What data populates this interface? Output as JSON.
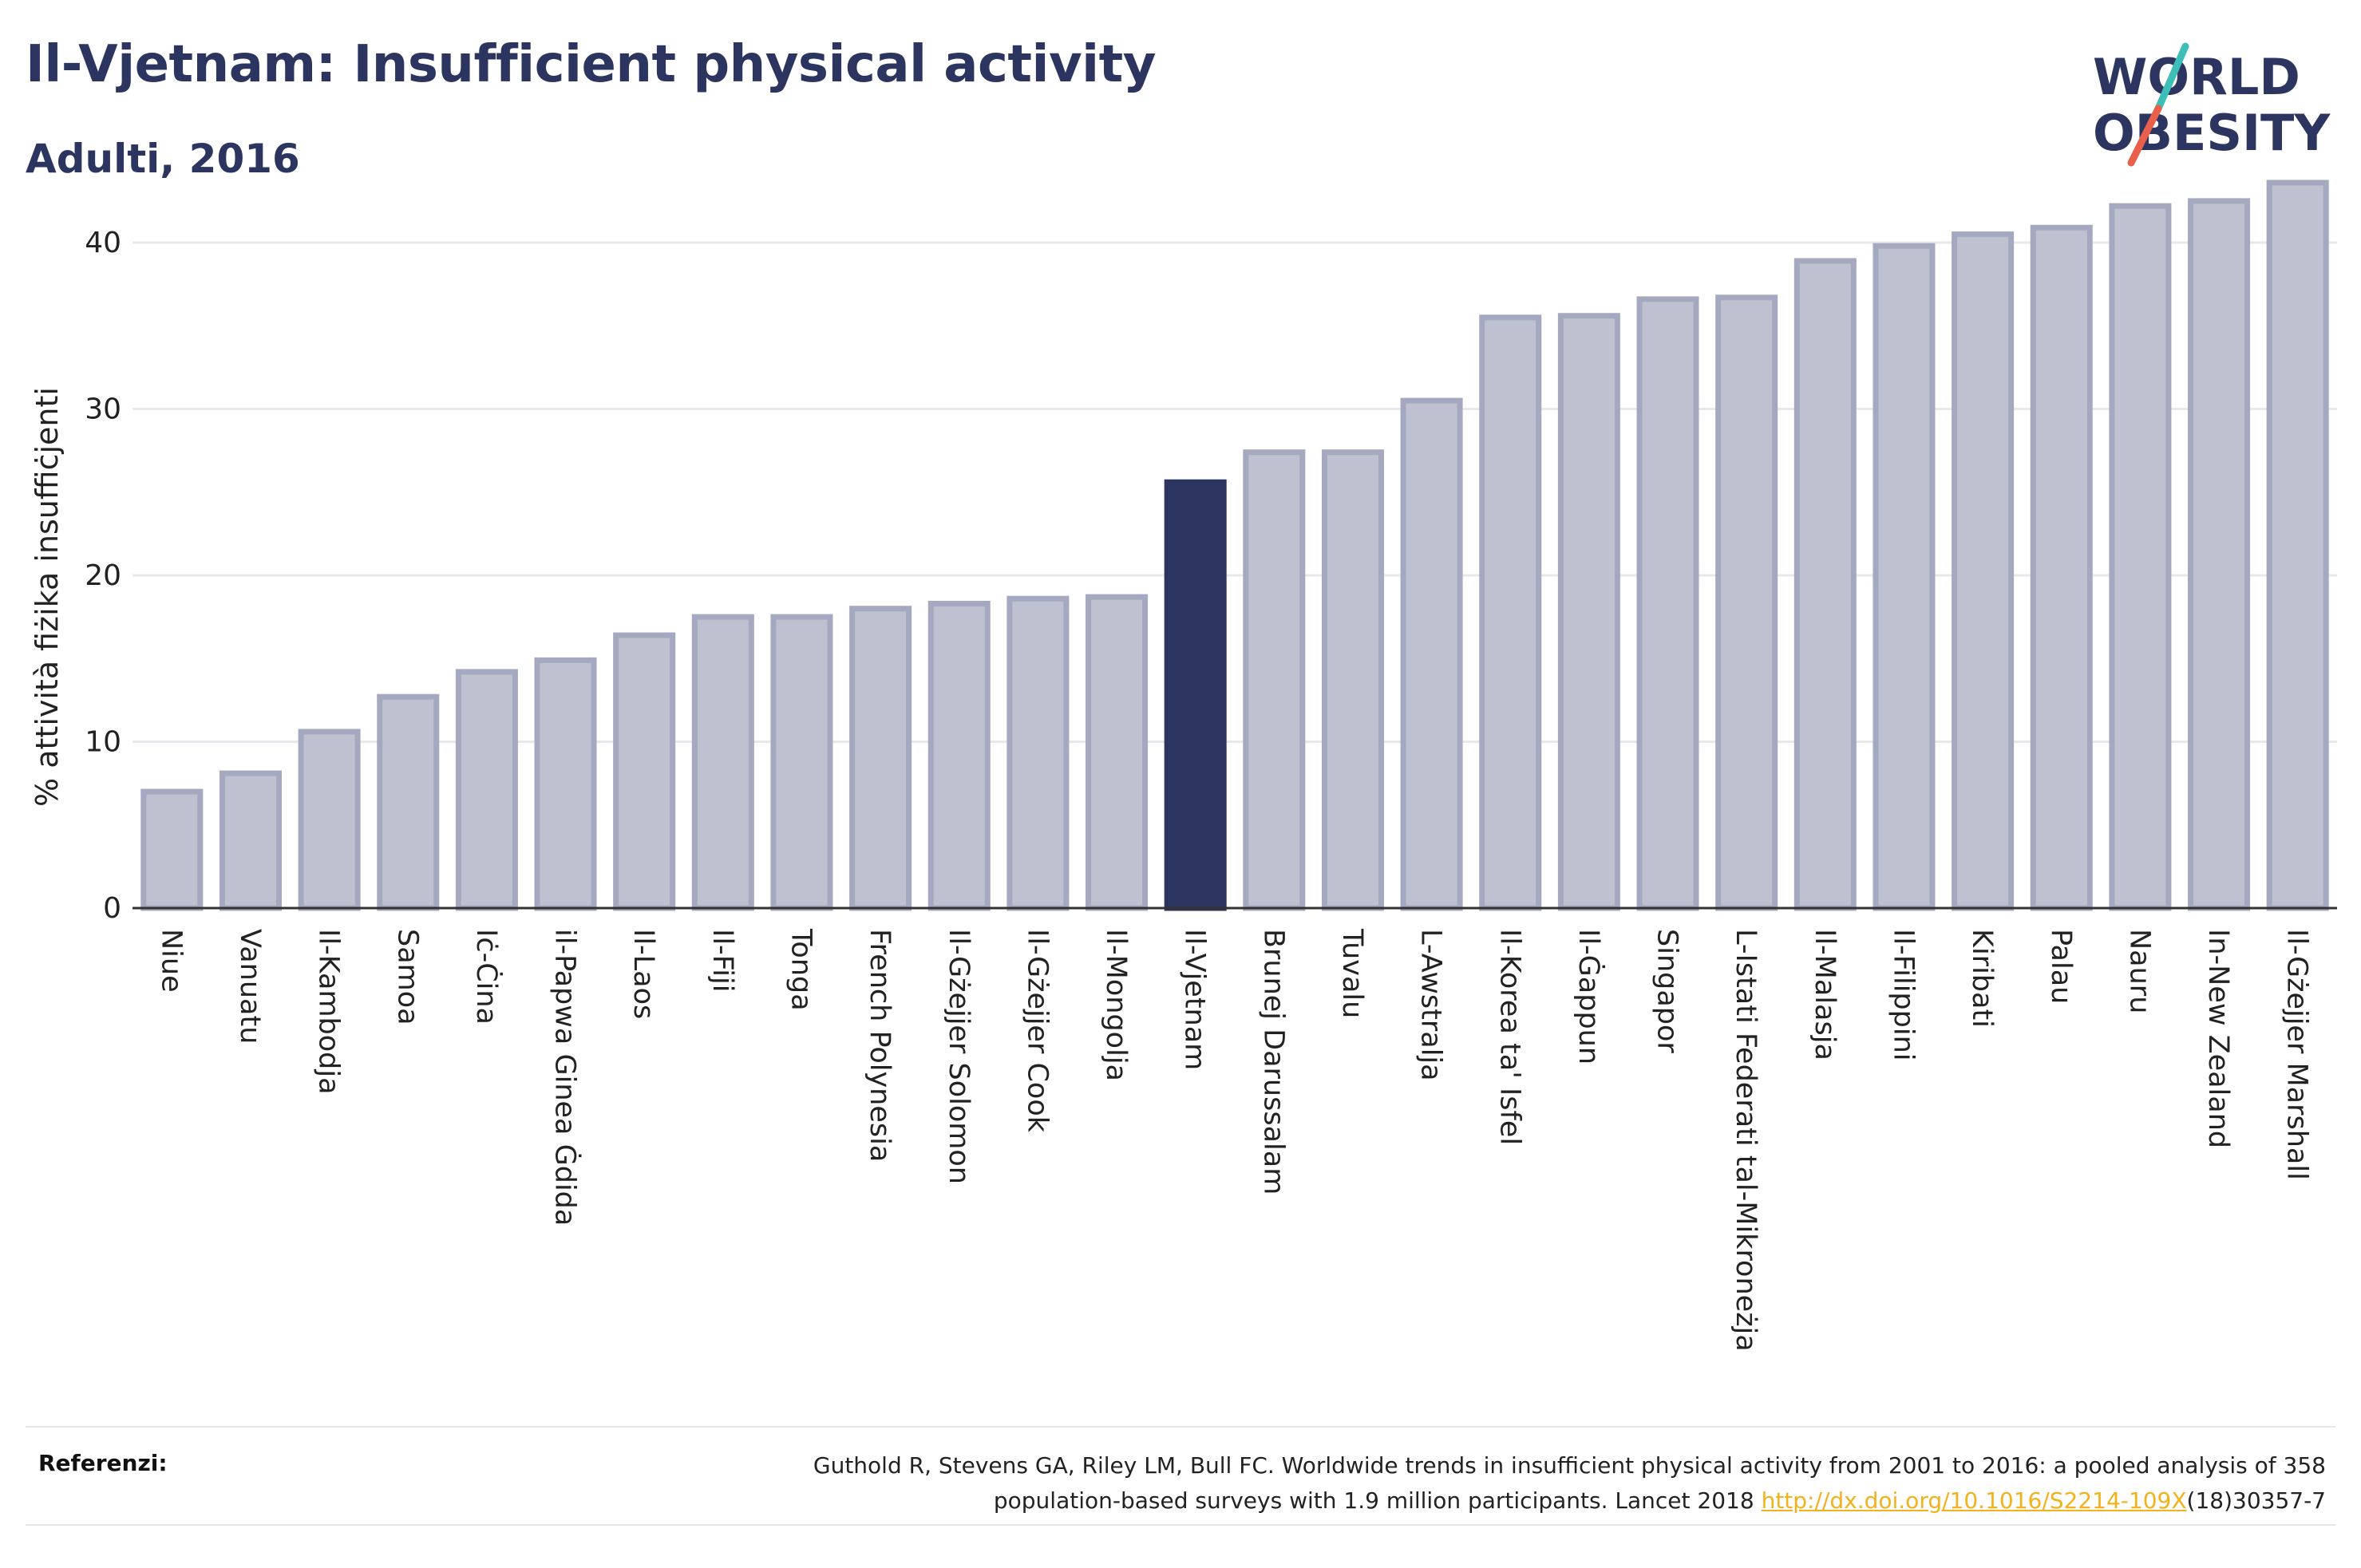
{
  "header": {
    "title": "Il-Vjetnam: Insufficient physical activity",
    "subtitle": "Adulti, 2016"
  },
  "logo": {
    "line1": "WORLD",
    "line2": "OBESITY",
    "colors": {
      "text": "#2b3560",
      "slash_top": "#3dbfb8",
      "slash_bottom": "#e8604c"
    }
  },
  "chart_data": {
    "type": "bar",
    "title": "Il-Vjetnam: Insufficient physical activity",
    "subtitle": "Adulti, 2016",
    "xlabel": "",
    "ylabel": "% attività fiżika insuffiċjenti",
    "ylim": [
      0,
      44
    ],
    "yticks": [
      0,
      10,
      20,
      30,
      40
    ],
    "grid": true,
    "highlight": "Il-Vjetnam",
    "colors": {
      "bar": "#bec1cf",
      "bar_outline": "#a4a9bf",
      "highlight": "#2b3560"
    },
    "categories": [
      "Niue",
      "Vanuatu",
      "Il-Kambodja",
      "Samoa",
      "Iċ-Ċina",
      "il-Papwa Ginea Ġdida",
      "Il-Laos",
      "Il-Fiji",
      "Tonga",
      "French Polynesia",
      "Il-Gżejjer Solomon",
      "Il-Gżejjer Cook",
      "Il-Mongolja",
      "Il-Vjetnam",
      "Brunej Darussalam",
      "Tuvalu",
      "L-Awstralja",
      "Il-Korea ta' Isfel",
      "Il-Ġappun",
      "Singapor",
      "L-Istati Federati tal-Mikroneżja",
      "Il-Malasja",
      "Il-Filippini",
      "Kiribati",
      "Palau",
      "Nauru",
      "In-New Zealand",
      "Il-Gżejjer Marshall"
    ],
    "values": [
      7.0,
      8.1,
      10.6,
      12.7,
      14.2,
      14.9,
      16.4,
      17.5,
      17.5,
      18.0,
      18.3,
      18.6,
      18.7,
      25.6,
      27.4,
      27.4,
      30.5,
      35.5,
      35.6,
      36.6,
      36.7,
      38.9,
      39.8,
      40.5,
      40.9,
      42.2,
      42.5,
      43.6
    ]
  },
  "reference": {
    "label": "Referenzi:",
    "text_line1": "Guthold R, Stevens GA, Riley LM, Bull FC. Worldwide trends in insufficient physical activity from 2001 to 2016: a pooled analysis of 358",
    "text_line2_prefix": "population-based surveys with 1.9 million participants. Lancet 2018 ",
    "link_text": "http://dx.doi.org/10.1016/S2214-109X",
    "text_line2_suffix": "(18)30357-7"
  }
}
